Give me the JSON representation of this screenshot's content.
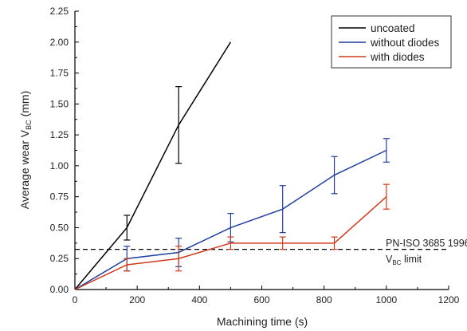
{
  "chart_data": {
    "type": "line",
    "xlabel": "Machining time (s)",
    "ylabel": {
      "main": "Average wear V",
      "sub": "BC",
      "unit": "(mm)"
    },
    "xlim": [
      0,
      1200
    ],
    "ylim": [
      0,
      2.25
    ],
    "xticks": [
      0,
      200,
      400,
      600,
      800,
      1000,
      1200
    ],
    "yticks": [
      "0.00",
      "0.25",
      "0.50",
      "0.75",
      "1.00",
      "1.25",
      "1.50",
      "1.75",
      "2.00",
      "2.25"
    ],
    "grid": false,
    "legend_position": "top-right",
    "series": [
      {
        "name": "uncoated",
        "color": "#000000",
        "x": [
          0,
          167,
          333,
          500
        ],
        "y": [
          0,
          0.5,
          1.33,
          2.0
        ],
        "err": [
          0,
          0.1,
          0.31,
          0
        ]
      },
      {
        "name": "without diodes",
        "color": "#1f3fa0",
        "x": [
          0,
          167,
          333,
          500,
          667,
          833,
          1000
        ],
        "y": [
          0,
          0.25,
          0.3,
          0.5,
          0.65,
          0.925,
          1.125
        ],
        "err": [
          0,
          0.1,
          0.115,
          0.115,
          0.19,
          0.15,
          0.095
        ]
      },
      {
        "name": "with diodes",
        "color": "#d03a1c",
        "x": [
          0,
          167,
          333,
          500,
          667,
          833,
          1000
        ],
        "y": [
          0,
          0.2,
          0.25,
          0.375,
          0.375,
          0.375,
          0.75
        ],
        "err": [
          0,
          0.05,
          0.1,
          0.05,
          0.05,
          0.05,
          0.1
        ]
      }
    ],
    "reference_line": {
      "y": 0.325,
      "style": "dashed",
      "label_line1": "PN-ISO 3685 1996",
      "label_line2_main": "V",
      "label_line2_sub": "BC",
      "label_line2_end": " limit"
    }
  }
}
